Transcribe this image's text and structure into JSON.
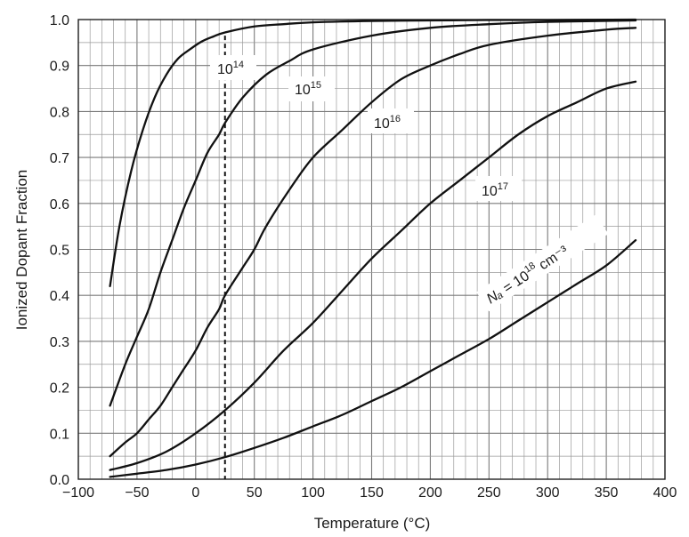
{
  "chart_data": {
    "type": "line",
    "title": "",
    "xlabel": "Temperature (°C)",
    "ylabel": "Ionized Dopant Fraction",
    "xlim": [
      -100,
      400
    ],
    "ylim": [
      0.0,
      1.0
    ],
    "x_ticks": [
      -100,
      -50,
      0,
      50,
      100,
      150,
      200,
      250,
      300,
      350,
      400
    ],
    "x_tick_labels": [
      "−100",
      "−50",
      "0",
      "50",
      "100",
      "150",
      "200",
      "250",
      "300",
      "350",
      "400"
    ],
    "y_ticks": [
      0.0,
      0.1,
      0.2,
      0.3,
      0.4,
      0.5,
      0.6,
      0.7,
      0.8,
      0.9,
      1.0
    ],
    "y_tick_labels": [
      "0.0",
      "0.1",
      "0.2",
      "0.3",
      "0.4",
      "0.5",
      "0.6",
      "0.7",
      "0.8",
      "0.9",
      "1.0"
    ],
    "x_minor_step": 10,
    "y_minor_step": 0.05,
    "grid": true,
    "reference_line": {
      "x": 25,
      "style": "dashed"
    },
    "series": [
      {
        "label_base": "10",
        "label_exp": "14",
        "label_prefix": "",
        "label_suffix": "",
        "x": [
          -73,
          -65,
          -55,
          -45,
          -35,
          -25,
          -15,
          -5,
          5,
          15,
          25,
          50,
          75,
          100,
          150,
          200,
          250,
          300,
          375
        ],
        "y": [
          0.42,
          0.55,
          0.67,
          0.76,
          0.83,
          0.88,
          0.915,
          0.935,
          0.952,
          0.963,
          0.972,
          0.985,
          0.99,
          0.994,
          0.997,
          0.998,
          0.999,
          0.999,
          1.0
        ]
      },
      {
        "label_base": "10",
        "label_exp": "15",
        "label_prefix": "",
        "label_suffix": "",
        "x": [
          -73,
          -60,
          -50,
          -40,
          -30,
          -20,
          -10,
          0,
          10,
          20,
          25,
          40,
          60,
          80,
          100,
          150,
          200,
          250,
          300,
          375
        ],
        "y": [
          0.16,
          0.25,
          0.31,
          0.37,
          0.45,
          0.52,
          0.59,
          0.65,
          0.71,
          0.75,
          0.775,
          0.83,
          0.88,
          0.91,
          0.935,
          0.965,
          0.982,
          0.99,
          0.995,
          0.998
        ]
      },
      {
        "label_base": "10",
        "label_exp": "16",
        "label_prefix": "",
        "label_suffix": "",
        "x": [
          -73,
          -60,
          -50,
          -40,
          -30,
          -20,
          -10,
          0,
          10,
          20,
          25,
          40,
          50,
          60,
          80,
          100,
          125,
          150,
          175,
          200,
          225,
          250,
          300,
          350,
          375
        ],
        "y": [
          0.05,
          0.08,
          0.1,
          0.13,
          0.16,
          0.2,
          0.24,
          0.28,
          0.33,
          0.37,
          0.4,
          0.46,
          0.5,
          0.55,
          0.63,
          0.7,
          0.76,
          0.82,
          0.87,
          0.9,
          0.925,
          0.945,
          0.965,
          0.978,
          0.982
        ]
      },
      {
        "label_base": "10",
        "label_exp": "17",
        "label_prefix": "",
        "label_suffix": "",
        "x": [
          -73,
          -50,
          -25,
          0,
          25,
          50,
          75,
          100,
          125,
          150,
          175,
          200,
          225,
          250,
          275,
          300,
          325,
          350,
          375
        ],
        "y": [
          0.02,
          0.035,
          0.06,
          0.1,
          0.15,
          0.21,
          0.28,
          0.34,
          0.41,
          0.48,
          0.54,
          0.6,
          0.65,
          0.7,
          0.75,
          0.79,
          0.82,
          0.85,
          0.865
        ]
      },
      {
        "label_base": "10",
        "label_exp": "18",
        "label_prefix": "Nₐ = ",
        "label_suffix": " cm⁻³",
        "x": [
          -73,
          -50,
          -25,
          0,
          25,
          50,
          75,
          100,
          125,
          150,
          175,
          200,
          225,
          250,
          275,
          300,
          325,
          350,
          375
        ],
        "y": [
          0.005,
          0.012,
          0.02,
          0.032,
          0.048,
          0.068,
          0.09,
          0.115,
          0.14,
          0.17,
          0.2,
          0.235,
          0.27,
          0.305,
          0.345,
          0.385,
          0.425,
          0.465,
          0.52
        ]
      }
    ]
  }
}
